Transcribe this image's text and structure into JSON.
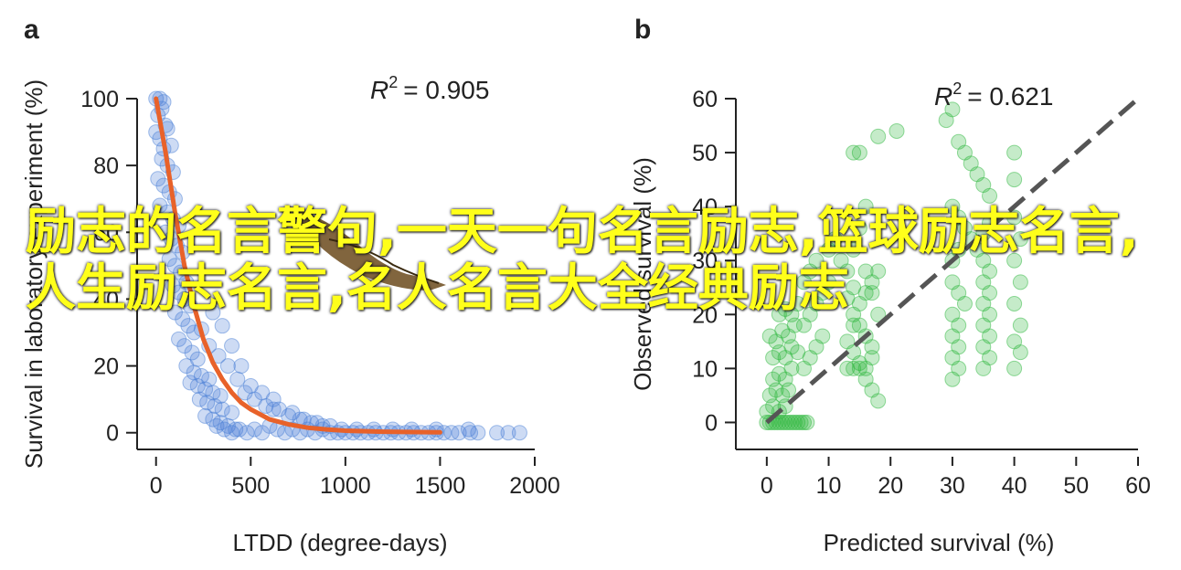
{
  "overlay_text": "励志的名言警句,一天一句名言励志,篮球励志名言,人生励志名言,名人名言大全经典励志",
  "colors": {
    "panel_a_points": "#4a7fd6",
    "panel_a_curve": "#e8622a",
    "panel_b_points": "#2db83d",
    "panel_b_line": "#555555",
    "overlay": "#ffff1a"
  },
  "chart_data": [
    {
      "panel": "a",
      "type": "scatter",
      "xlabel": "LTDD (degree-days)",
      "ylabel": "Survival in laboratory experiment (%)",
      "annotation_r2_label": "R",
      "annotation_r2_value": "= 0.905",
      "xlim": [
        -100,
        2000
      ],
      "ylim": [
        -5,
        100
      ],
      "xticks": [
        "0",
        "500",
        "1000",
        "1500",
        "2000"
      ],
      "yticks": [
        "0",
        "20",
        "40",
        "60",
        "80",
        "100"
      ],
      "points": [
        [
          0,
          100
        ],
        [
          20,
          100
        ],
        [
          40,
          99
        ],
        [
          10,
          95
        ],
        [
          30,
          97
        ],
        [
          50,
          92
        ],
        [
          0,
          90
        ],
        [
          20,
          88
        ],
        [
          40,
          85
        ],
        [
          60,
          91
        ],
        [
          80,
          86
        ],
        [
          30,
          82
        ],
        [
          60,
          80
        ],
        [
          90,
          78
        ],
        [
          10,
          76
        ],
        [
          40,
          74
        ],
        [
          70,
          72
        ],
        [
          100,
          70
        ],
        [
          20,
          68
        ],
        [
          60,
          66
        ],
        [
          90,
          64
        ],
        [
          120,
          62
        ],
        [
          50,
          60
        ],
        [
          80,
          58
        ],
        [
          110,
          56
        ],
        [
          140,
          54
        ],
        [
          70,
          52
        ],
        [
          100,
          50
        ],
        [
          130,
          48
        ],
        [
          160,
          45
        ],
        [
          90,
          44
        ],
        [
          120,
          42
        ],
        [
          150,
          40
        ],
        [
          180,
          38
        ],
        [
          100,
          36
        ],
        [
          140,
          34
        ],
        [
          170,
          32
        ],
        [
          200,
          30
        ],
        [
          120,
          28
        ],
        [
          150,
          26
        ],
        [
          190,
          24
        ],
        [
          220,
          22
        ],
        [
          160,
          20
        ],
        [
          200,
          18
        ],
        [
          240,
          17
        ],
        [
          280,
          16
        ],
        [
          180,
          15
        ],
        [
          220,
          14
        ],
        [
          260,
          13
        ],
        [
          300,
          12
        ],
        [
          340,
          11
        ],
        [
          230,
          10
        ],
        [
          270,
          9
        ],
        [
          310,
          8
        ],
        [
          350,
          7
        ],
        [
          400,
          6
        ],
        [
          260,
          5
        ],
        [
          300,
          4
        ],
        [
          340,
          3
        ],
        [
          380,
          2
        ],
        [
          420,
          1
        ],
        [
          320,
          2
        ],
        [
          360,
          1
        ],
        [
          400,
          0
        ],
        [
          440,
          1
        ],
        [
          480,
          0
        ],
        [
          520,
          1
        ],
        [
          560,
          0
        ],
        [
          600,
          2
        ],
        [
          640,
          1
        ],
        [
          680,
          0
        ],
        [
          720,
          1
        ],
        [
          760,
          0
        ],
        [
          800,
          1
        ],
        [
          840,
          0
        ],
        [
          880,
          1
        ],
        [
          920,
          0
        ],
        [
          960,
          0
        ],
        [
          1000,
          0
        ],
        [
          1040,
          0
        ],
        [
          1080,
          0
        ],
        [
          1120,
          0
        ],
        [
          1160,
          0
        ],
        [
          1200,
          0
        ],
        [
          1240,
          0
        ],
        [
          1280,
          0
        ],
        [
          1320,
          0
        ],
        [
          1360,
          0
        ],
        [
          1400,
          0
        ],
        [
          1440,
          0
        ],
        [
          1480,
          0
        ],
        [
          1520,
          0
        ],
        [
          1560,
          0
        ],
        [
          1600,
          0
        ],
        [
          1660,
          0
        ],
        [
          1700,
          0
        ],
        [
          1800,
          0
        ],
        [
          1860,
          0
        ],
        [
          1920,
          0
        ],
        [
          240,
          31
        ],
        [
          280,
          26
        ],
        [
          330,
          23
        ],
        [
          380,
          20
        ],
        [
          430,
          16
        ],
        [
          470,
          12
        ],
        [
          520,
          10
        ],
        [
          580,
          8
        ],
        [
          620,
          7
        ],
        [
          700,
          5
        ],
        [
          760,
          4
        ],
        [
          820,
          3
        ],
        [
          880,
          2
        ],
        [
          300,
          36
        ],
        [
          350,
          32
        ],
        [
          400,
          26
        ],
        [
          450,
          20
        ],
        [
          500,
          14
        ],
        [
          560,
          12
        ],
        [
          620,
          10
        ],
        [
          650,
          7
        ],
        [
          720,
          6
        ],
        [
          780,
          4
        ],
        [
          850,
          3
        ],
        [
          920,
          2
        ],
        [
          980,
          1
        ],
        [
          1060,
          1
        ],
        [
          1150,
          1
        ],
        [
          1250,
          1
        ],
        [
          1350,
          1
        ],
        [
          1480,
          1
        ],
        [
          1650,
          1
        ]
      ],
      "curve": [
        [
          0,
          100
        ],
        [
          50,
          84
        ],
        [
          100,
          66
        ],
        [
          150,
          50
        ],
        [
          200,
          38
        ],
        [
          250,
          28
        ],
        [
          300,
          21
        ],
        [
          350,
          16
        ],
        [
          400,
          12
        ],
        [
          450,
          9
        ],
        [
          500,
          7
        ],
        [
          600,
          4
        ],
        [
          700,
          2.5
        ],
        [
          800,
          1.5
        ],
        [
          900,
          1
        ],
        [
          1000,
          0.6
        ],
        [
          1200,
          0.3
        ],
        [
          1500,
          0.1
        ]
      ]
    },
    {
      "panel": "b",
      "type": "scatter",
      "xlabel": "Predicted survival (%)",
      "ylabel": "Observed survival (%)",
      "annotation_r2_label": "R",
      "annotation_r2_value": "= 0.621",
      "xlim": [
        -5,
        60
      ],
      "ylim": [
        -5,
        60
      ],
      "xticks": [
        "0",
        "10",
        "20",
        "30",
        "40",
        "50",
        "60"
      ],
      "yticks": [
        "0",
        "10",
        "20",
        "30",
        "40",
        "50",
        "60"
      ],
      "points": [
        [
          0,
          0
        ],
        [
          0.5,
          0
        ],
        [
          1,
          0
        ],
        [
          1.5,
          0
        ],
        [
          2,
          0
        ],
        [
          2.5,
          0
        ],
        [
          3,
          0
        ],
        [
          3.5,
          0
        ],
        [
          4,
          0
        ],
        [
          4.5,
          0
        ],
        [
          5,
          0
        ],
        [
          5.5,
          0
        ],
        [
          6,
          0
        ],
        [
          6.5,
          0
        ],
        [
          0,
          2
        ],
        [
          1,
          3
        ],
        [
          2,
          2
        ],
        [
          3,
          3
        ],
        [
          0.5,
          5
        ],
        [
          1.5,
          6
        ],
        [
          2.5,
          5
        ],
        [
          3.5,
          6
        ],
        [
          1,
          8
        ],
        [
          2,
          9
        ],
        [
          3,
          8
        ],
        [
          4,
          10
        ],
        [
          1,
          12
        ],
        [
          2,
          13
        ],
        [
          3,
          12
        ],
        [
          4,
          14
        ],
        [
          5,
          13
        ],
        [
          0.5,
          16
        ],
        [
          1.5,
          15
        ],
        [
          2.5,
          17
        ],
        [
          3.5,
          16
        ],
        [
          4.5,
          18
        ],
        [
          2,
          20
        ],
        [
          3,
          21
        ],
        [
          4,
          20
        ],
        [
          5,
          22
        ],
        [
          6,
          10
        ],
        [
          7,
          12
        ],
        [
          8,
          14
        ],
        [
          9,
          16
        ],
        [
          6,
          18
        ],
        [
          7,
          20
        ],
        [
          8,
          22
        ],
        [
          9,
          24
        ],
        [
          10,
          26
        ],
        [
          6,
          26
        ],
        [
          7,
          28
        ],
        [
          8,
          30
        ],
        [
          10,
          32
        ],
        [
          11,
          34
        ],
        [
          12,
          30
        ],
        [
          13,
          28
        ],
        [
          14,
          25
        ],
        [
          13,
          23
        ],
        [
          14,
          20
        ],
        [
          15,
          18
        ],
        [
          16,
          16
        ],
        [
          13,
          15
        ],
        [
          14,
          13
        ],
        [
          15,
          11
        ],
        [
          16,
          10
        ],
        [
          17,
          12
        ],
        [
          17,
          14
        ],
        [
          18,
          20
        ],
        [
          17,
          24
        ],
        [
          16,
          28
        ],
        [
          14,
          32
        ],
        [
          15,
          36
        ],
        [
          16,
          40
        ],
        [
          14,
          50
        ],
        [
          15,
          50
        ],
        [
          18,
          53
        ],
        [
          21,
          54
        ],
        [
          13,
          10
        ],
        [
          14,
          10
        ],
        [
          15,
          10
        ],
        [
          16,
          8
        ],
        [
          17,
          6
        ],
        [
          18,
          4
        ],
        [
          14,
          18
        ],
        [
          15,
          22
        ],
        [
          16,
          24
        ],
        [
          17,
          26
        ],
        [
          18,
          28
        ],
        [
          29,
          56
        ],
        [
          30,
          58
        ],
        [
          31,
          52
        ],
        [
          32,
          50
        ],
        [
          33,
          48
        ],
        [
          34,
          46
        ],
        [
          35,
          44
        ],
        [
          36,
          42
        ],
        [
          30,
          40
        ],
        [
          31,
          38
        ],
        [
          32,
          36
        ],
        [
          33,
          34
        ],
        [
          34,
          32
        ],
        [
          35,
          30
        ],
        [
          36,
          28
        ],
        [
          30,
          26
        ],
        [
          31,
          24
        ],
        [
          32,
          22
        ],
        [
          30,
          20
        ],
        [
          31,
          18
        ],
        [
          30,
          16
        ],
        [
          31,
          14
        ],
        [
          30,
          12
        ],
        [
          31,
          10
        ],
        [
          30,
          8
        ],
        [
          35,
          10
        ],
        [
          36,
          12
        ],
        [
          35,
          14
        ],
        [
          36,
          16
        ],
        [
          35,
          18
        ],
        [
          36,
          20
        ],
        [
          35,
          22
        ],
        [
          36,
          24
        ],
        [
          35,
          26
        ],
        [
          40,
          50
        ],
        [
          40,
          45
        ],
        [
          40,
          38
        ],
        [
          41,
          34
        ],
        [
          40,
          30
        ],
        [
          41,
          26
        ],
        [
          40,
          22
        ],
        [
          41,
          18
        ],
        [
          40,
          15
        ],
        [
          41,
          13
        ],
        [
          40,
          10
        ],
        [
          35,
          35
        ],
        [
          36,
          37
        ],
        [
          30,
          30
        ],
        [
          31,
          32
        ]
      ],
      "line": [
        [
          0,
          0
        ],
        [
          60,
          60
        ]
      ]
    }
  ]
}
